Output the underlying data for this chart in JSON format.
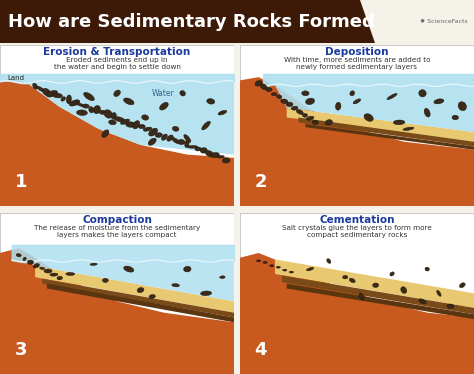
{
  "title": "How are Sedimentary Rocks Formed",
  "title_bg": "#3d1a08",
  "title_color": "#ffffff",
  "bg_color": "#f5f2ea",
  "panel_bg": "#ffffff",
  "panel_titles": [
    "Erosion & Transportation",
    "Deposition",
    "Compaction",
    "Cementation"
  ],
  "panel_subtitles": [
    "Eroded sediments end up in\nthe water and begin to settle down",
    "With time, more sediments are added to\nnewly formed sedimentary layers",
    "The release of moisture from the sedimentary\nlayers makes the layers compact",
    "Salt crystals glue the layers to form more\ncompact sedimentary rocks"
  ],
  "panel_numbers": [
    "1",
    "2",
    "3",
    "4"
  ],
  "land_color": "#c85a20",
  "land_mid_color": "#b84e18",
  "water_color": "#b0e0f0",
  "water_dark": "#88cce0",
  "deep_earth_color": "#8b3210",
  "sed_yellow": "#e8c870",
  "sed_brown": "#7a4a18",
  "sed_dark": "#5a3510",
  "rock_color": "#3a2a1a",
  "rock_edge": "#1a1008",
  "title_font_size": 13,
  "panel_title_font_size": 7.5,
  "panel_subtitle_font_size": 5.2,
  "number_font_size": 13
}
